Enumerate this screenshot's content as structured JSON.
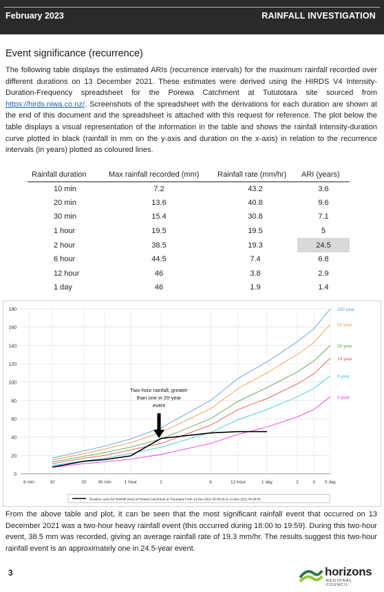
{
  "header": {
    "date": "February 2023",
    "section": "RAINFALL INVESTIGATION"
  },
  "heading": "Event significance (recurrence)",
  "intro": {
    "before_link": "The following table displays the estimated ARIs (recurrence intervals) for the maximum rainfall recorded over different durations on 13 December 2021. These estimates were derived using the HIRDS V4 Intensity-Duration-Frequency spreadsheet for the Porewa Catchment at Tututotara site sourced from ",
    "link": "https://hirds.niwa.co.nz/",
    "after_link": ". Screenshots of the spreadsheet with the derivations for each duration are shown at the end of this document and the spreadsheet is attached with this request for reference. The plot below the table displays a visual representation of the information in the table and shows the rainfall intensity-duration curve plotted in black (rainfall in mm on the y-axis and duration on the x-axis) in relation to the recurrence intervals (in years) plotted as coloured lines."
  },
  "table": {
    "headers": [
      "Rainfall duration",
      "Max rainfall recorded (mm)",
      "Rainfall rate (mm/hr)",
      "ARI (years)"
    ],
    "rows": [
      [
        "10 min",
        "7.2",
        "43.2",
        "3.6"
      ],
      [
        "20 min",
        "13.6",
        "40.8",
        "9.6"
      ],
      [
        "30 min",
        "15.4",
        "30.8",
        "7.1"
      ],
      [
        "1 hour",
        "19.5",
        "19.5",
        "5"
      ],
      [
        "2 hour",
        "38.5",
        "19.3",
        "24.5"
      ],
      [
        "6 hour",
        "44.5",
        "7.4",
        "6.8"
      ],
      [
        "12 hour",
        "46",
        "3.8",
        "2.9"
      ],
      [
        "1 day",
        "46",
        "1.9",
        "1.4"
      ]
    ],
    "highlight_row": 4,
    "highlight_col": 3
  },
  "chart_data": {
    "type": "line",
    "x": [
      "6 min",
      "10",
      "20",
      "30 min",
      "1 hour",
      "2",
      "6",
      "12 hour",
      "1 day",
      "2",
      "3",
      "5 day"
    ],
    "ylim": [
      0,
      180
    ],
    "yticks": [
      0,
      20,
      40,
      60,
      80,
      100,
      120,
      140,
      160,
      180
    ],
    "grid": true,
    "series": [
      {
        "name": "100 year",
        "color": "#5b9bd5",
        "values": [
          null,
          17,
          25,
          30,
          38,
          50,
          80,
          104,
          122,
          144,
          158,
          180
        ]
      },
      {
        "name": "50 year",
        "color": "#ed9c4a",
        "values": [
          null,
          15,
          22,
          27,
          34,
          45,
          71,
          93,
          110,
          130,
          143,
          163
        ]
      },
      {
        "name": "20 year",
        "color": "#5ba04a",
        "values": [
          null,
          13,
          19,
          23,
          29,
          38,
          60,
          79,
          94,
          111,
          123,
          140
        ]
      },
      {
        "name": "10 year",
        "color": "#d9534f",
        "values": [
          null,
          11,
          17,
          20,
          26,
          33,
          53,
          70,
          82,
          98,
          109,
          126
        ]
      },
      {
        "name": "5 year",
        "color": "#33c7e0",
        "values": [
          null,
          9,
          14,
          17,
          22,
          29,
          45,
          59,
          70,
          84,
          93,
          107
        ]
      },
      {
        "name": "2 year",
        "color": "#e23ae2",
        "values": [
          null,
          7,
          11,
          13,
          16,
          21,
          33,
          43,
          51,
          62,
          70,
          84
        ]
      },
      {
        "name": "",
        "color": "#000000",
        "values": [
          null,
          7.2,
          13.6,
          15.4,
          19.5,
          38.5,
          44.5,
          46,
          46,
          null,
          null,
          null
        ]
      }
    ],
    "annotation": "Two-hour rainfall, greater than one in 20-year event",
    "legend": "Duration curve for Rainfall (mm) at Porewa Catchment at Tututotara From 13-Dec-2021 00:00:00 to 14-Dec-2021 00:00:00"
  },
  "conclusion": "From the above table and plot, it can be seen that the most significant rainfall event that occurred on 13 December 2021 was a two-hour heavy rainfall event (this occurred during 18:00 to 19:59). During this two-hour event, 38.5 mm was recorded, giving an average rainfall rate of 19.3 mm/hr. The results suggest this two-hour rainfall event is an approximately one in 24.5-year event.",
  "footer": {
    "page": "3",
    "logo": "horizons",
    "logo_sub": "REGIONAL COUNCIL"
  }
}
